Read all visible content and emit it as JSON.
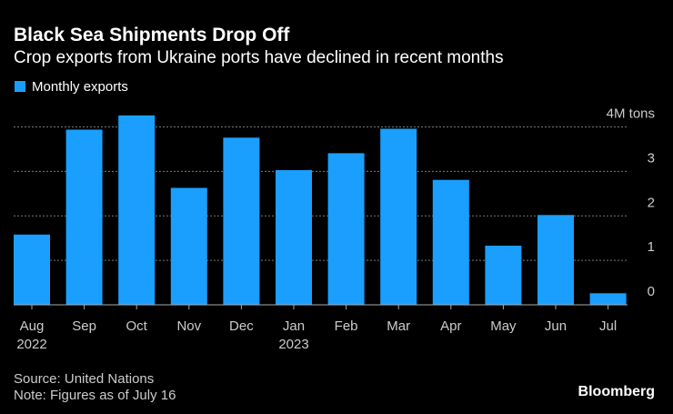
{
  "chart_data": {
    "type": "bar",
    "title": "Black Sea Shipments Drop Off",
    "subtitle": "Crop exports from Ukraine ports have declined in recent months",
    "categories": [
      "Aug\n2022",
      "Sep",
      "Oct",
      "Nov",
      "Dec",
      "Jan\n2023",
      "Feb",
      "Mar",
      "Apr",
      "May",
      "Jun",
      "Jul"
    ],
    "series": [
      {
        "name": "Monthly exports",
        "color": "#1a9fff",
        "values": [
          1.58,
          3.94,
          4.26,
          2.63,
          3.76,
          3.03,
          3.41,
          3.96,
          2.81,
          1.33,
          2.02,
          0.26
        ]
      }
    ],
    "ylim": [
      0,
      4.4
    ],
    "yticks": [
      0,
      1,
      2,
      3,
      {
        "value": 4,
        "label": "4M tons"
      }
    ],
    "grid": true,
    "source": "Source: United Nations",
    "note": "Note: Figures as of July 16",
    "brand": "Bloomberg"
  }
}
